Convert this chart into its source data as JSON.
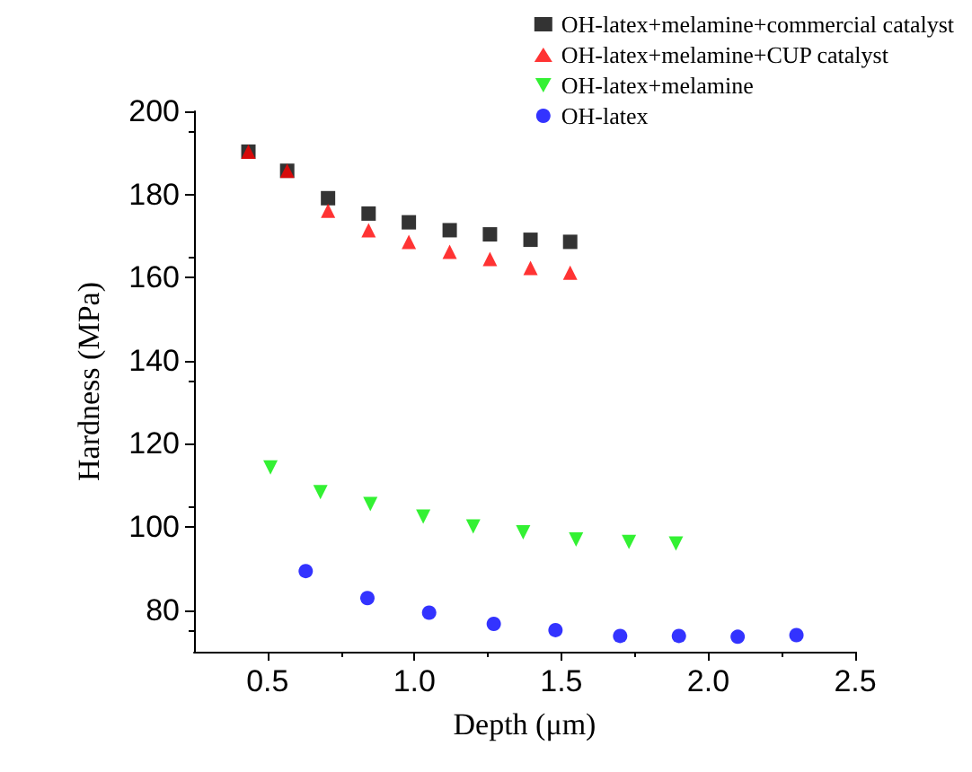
{
  "chart_data": {
    "type": "scatter",
    "xlabel": "Depth (μm)",
    "ylabel": "Hardness (MPa)",
    "xlim": [
      0.25,
      2.5
    ],
    "ylim": [
      70,
      200
    ],
    "xticks": [
      0.5,
      {
        "value": 1,
        "label": "1.0"
      },
      1.5,
      {
        "value": 2,
        "label": "2.0"
      },
      2.5
    ],
    "yticks": [
      80,
      100,
      120,
      140,
      160,
      180,
      200
    ],
    "grid": false,
    "legend": "top right",
    "series": [
      {
        "name": "OH-latex+melamine+commercial catalyst",
        "color": "#000000",
        "marker": "square",
        "x": [
          0.435,
          0.567,
          0.706,
          0.844,
          0.981,
          1.12,
          1.257,
          1.395,
          1.53
        ],
        "values": [
          190.3,
          185.7,
          179.1,
          175.4,
          173.3,
          171.4,
          170.4,
          169.1,
          168.6
        ]
      },
      {
        "name": "OH-latex+melamine+CUP catalyst",
        "color": "#ff0000",
        "marker": "triangle",
        "x": [
          0.435,
          0.567,
          0.706,
          0.844,
          0.981,
          1.12,
          1.257,
          1.395,
          1.53
        ],
        "values": [
          190.3,
          185.7,
          176.1,
          171.4,
          168.6,
          166.2,
          164.5,
          162.3,
          161.2
        ]
      },
      {
        "name": "OH-latex+melamine",
        "color": "#00ee00",
        "marker": "triangle",
        "x": [
          0.51,
          0.68,
          0.85,
          1.03,
          1.2,
          1.37,
          1.55,
          1.73,
          1.89
        ],
        "values": [
          114.3,
          108.4,
          105.5,
          102.5,
          100.1,
          98.7,
          97.0,
          96.4,
          96.0
        ]
      },
      {
        "name": "OH-latex",
        "color": "#0000ff",
        "marker": "circle",
        "x": [
          0.63,
          0.84,
          1.05,
          1.27,
          1.48,
          1.7,
          1.9,
          2.1,
          2.3
        ],
        "values": [
          89.4,
          82.9,
          79.4,
          76.7,
          75.2,
          73.8,
          73.8,
          73.6,
          74.0
        ]
      }
    ]
  }
}
